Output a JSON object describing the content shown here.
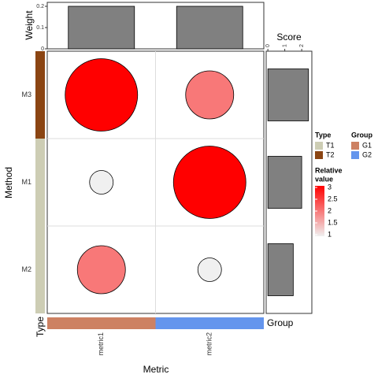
{
  "chart_data": {
    "type": "bubble_heatmap",
    "xlabel": "Metric",
    "ylabel": "Method",
    "categories": [
      "metric1",
      "metric2"
    ],
    "rows": [
      "M3",
      "M1",
      "M2"
    ],
    "values": [
      [
        3,
        2
      ],
      [
        1,
        3
      ],
      [
        2,
        1
      ]
    ],
    "value_scale": {
      "title_lines": [
        "Relative",
        "value"
      ],
      "lim": [
        1,
        3
      ],
      "ticks": [
        1,
        1.5,
        2,
        2.5,
        3
      ],
      "low_color": "#f0f0f0",
      "high_color": "#ff0000"
    },
    "weight": {
      "label": "Weight",
      "values": [
        0.2,
        0.2
      ],
      "ylim": [
        0,
        0.2
      ],
      "yticks": [
        0,
        0.1,
        0.2
      ],
      "color": "#808080"
    },
    "score": {
      "label": "Score",
      "values": [
        2.4,
        2.0,
        1.5
      ],
      "xlim": [
        -0.1,
        2.6
      ],
      "xticks": [
        0,
        1,
        2
      ],
      "color": "#808080"
    },
    "type_annot": {
      "label": "Type",
      "values": [
        "T2",
        "T1",
        "T1"
      ],
      "legend": [
        {
          "name": "T1",
          "color": "#cdcdb4"
        },
        {
          "name": "T2",
          "color": "#8b4513"
        }
      ]
    },
    "group_annot": {
      "label": "Group",
      "values": [
        "G1",
        "G2"
      ],
      "legend": [
        {
          "name": "G1",
          "color": "#cd8162"
        },
        {
          "name": "G2",
          "color": "#6495ed"
        }
      ]
    }
  }
}
